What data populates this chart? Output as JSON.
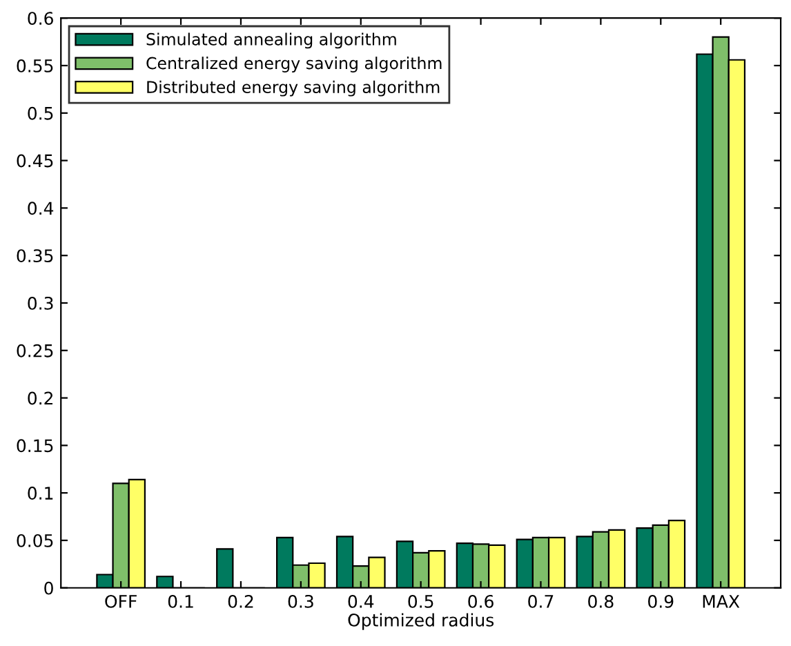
{
  "chart_data": {
    "type": "bar",
    "xlabel": "Optimized radius",
    "categories": [
      "OFF",
      "0.1",
      "0.2",
      "0.3",
      "0.4",
      "0.5",
      "0.6",
      "0.7",
      "0.8",
      "0.9",
      "MAX"
    ],
    "series": [
      {
        "name": "Simulated annealing algorithm",
        "color": "#007a5e",
        "values": [
          0.014,
          0.012,
          0.041,
          0.053,
          0.054,
          0.049,
          0.047,
          0.051,
          0.054,
          0.063,
          0.562
        ]
      },
      {
        "name": "Centralized energy saving algorithm",
        "color": "#7fbf6a",
        "values": [
          0.11,
          0,
          0,
          0.024,
          0.023,
          0.037,
          0.046,
          0.053,
          0.059,
          0.066,
          0.58
        ]
      },
      {
        "name": "Distributed energy saving algorithm",
        "color": "#ffff66",
        "values": [
          0.114,
          0,
          0,
          0.026,
          0.032,
          0.039,
          0.045,
          0.053,
          0.061,
          0.071,
          0.556
        ]
      }
    ],
    "ylim": [
      0,
      0.6
    ],
    "yticks": [
      0,
      0.05,
      0.1,
      0.15,
      0.2,
      0.25,
      0.3,
      0.35,
      0.4,
      0.45,
      0.5,
      0.55,
      0.6
    ],
    "grid": false,
    "legend": "top left"
  }
}
